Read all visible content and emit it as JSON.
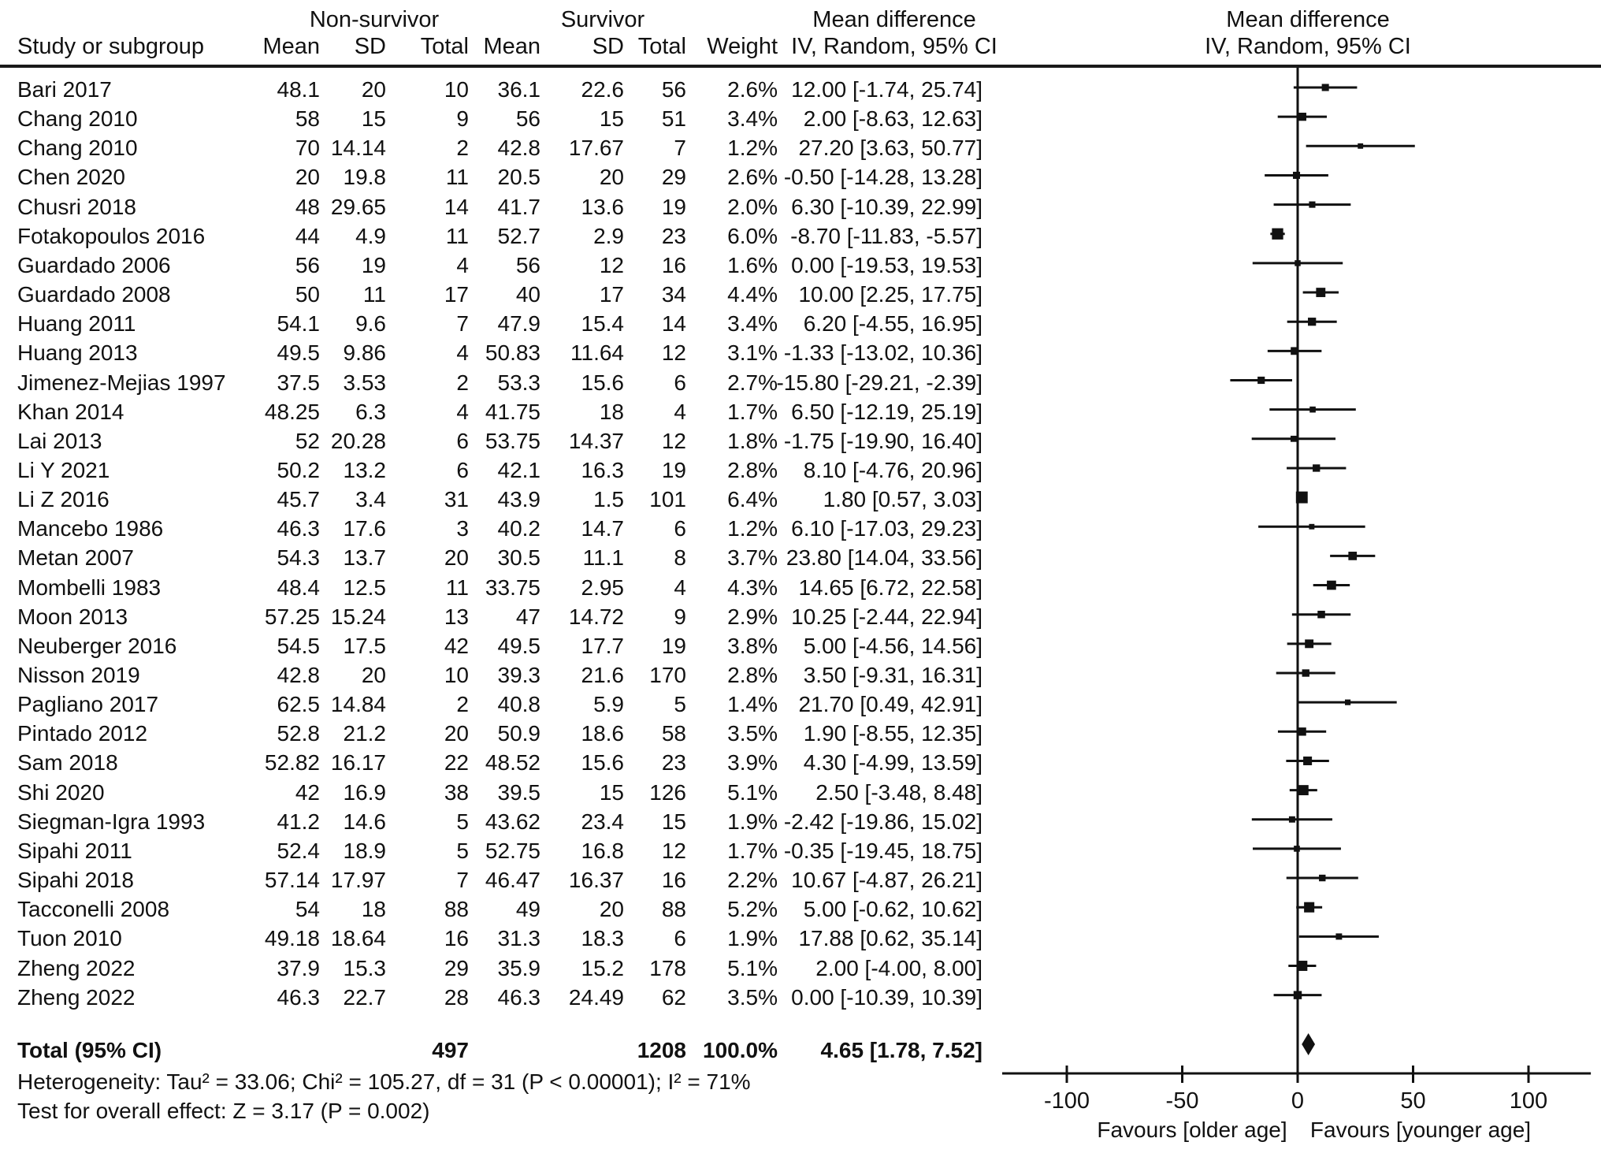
{
  "ui": {
    "columns": {
      "study": "Study or subgroup",
      "group1": "Non-survivor",
      "group2": "Survivor",
      "mean": "Mean",
      "sd": "SD",
      "total": "Total",
      "weight": "Weight",
      "md_line1": "Mean difference",
      "md_line2": "IV, Random, 95% CI",
      "plot_line1": "Mean difference",
      "plot_line2": "IV, Random, 95% CI"
    },
    "footer": {
      "total_label": "Total (95% CI)",
      "total_ns_n": "497",
      "total_s_n": "1208",
      "total_weight": "100.0%",
      "total_ci_text": "4.65 [1.78, 7.52]",
      "heterogeneity": "Heterogeneity: Tau² = 33.06; Chi² = 105.27, df = 31 (P < 0.00001); I² = 71%",
      "overall_effect": "Test for overall effect: Z = 3.17 (P = 0.002)"
    },
    "colors": {
      "ink": "#111111"
    }
  },
  "chart_data": {
    "type": "scatter",
    "subtype": "forest-plot",
    "title": "Mean difference IV, Random, 95% CI",
    "xlabel": "Mean difference",
    "xlim": [
      -128,
      127
    ],
    "xticks": [
      -100,
      -50,
      0,
      50,
      100
    ],
    "grid": false,
    "legend_position": "none",
    "favours_left": "Favours [older age]",
    "favours_right": "Favours [younger age]",
    "studies": [
      {
        "name": "Bari 2017",
        "ns": [
          "48.1",
          "20",
          "10"
        ],
        "s": [
          "36.1",
          "22.6",
          "56"
        ],
        "weight": "2.6%",
        "w": 2.6,
        "md": 12.0,
        "lo": -1.74,
        "hi": 25.74
      },
      {
        "name": "Chang 2010",
        "ns": [
          "58",
          "15",
          "9"
        ],
        "s": [
          "56",
          "15",
          "51"
        ],
        "weight": "3.4%",
        "w": 3.4,
        "md": 2.0,
        "lo": -8.63,
        "hi": 12.63
      },
      {
        "name": "Chang 2010",
        "ns": [
          "70",
          "14.14",
          "2"
        ],
        "s": [
          "42.8",
          "17.67",
          "7"
        ],
        "weight": "1.2%",
        "w": 1.2,
        "md": 27.2,
        "lo": 3.63,
        "hi": 50.77
      },
      {
        "name": "Chen 2020",
        "ns": [
          "20",
          "19.8",
          "11"
        ],
        "s": [
          "20.5",
          "20",
          "29"
        ],
        "weight": "2.6%",
        "w": 2.6,
        "md": -0.5,
        "lo": -14.28,
        "hi": 13.28
      },
      {
        "name": "Chusri 2018",
        "ns": [
          "48",
          "29.65",
          "14"
        ],
        "s": [
          "41.7",
          "13.6",
          "19"
        ],
        "weight": "2.0%",
        "w": 2.0,
        "md": 6.3,
        "lo": -10.39,
        "hi": 22.99
      },
      {
        "name": "Fotakopoulos 2016",
        "ns": [
          "44",
          "4.9",
          "11"
        ],
        "s": [
          "52.7",
          "2.9",
          "23"
        ],
        "weight": "6.0%",
        "w": 6.0,
        "md": -8.7,
        "lo": -11.83,
        "hi": -5.57
      },
      {
        "name": "Guardado 2006",
        "ns": [
          "56",
          "19",
          "4"
        ],
        "s": [
          "56",
          "12",
          "16"
        ],
        "weight": "1.6%",
        "w": 1.6,
        "md": 0.0,
        "lo": -19.53,
        "hi": 19.53
      },
      {
        "name": "Guardado 2008",
        "ns": [
          "50",
          "11",
          "17"
        ],
        "s": [
          "40",
          "17",
          "34"
        ],
        "weight": "4.4%",
        "w": 4.4,
        "md": 10.0,
        "lo": 2.25,
        "hi": 17.75
      },
      {
        "name": "Huang 2011",
        "ns": [
          "54.1",
          "9.6",
          "7"
        ],
        "s": [
          "47.9",
          "15.4",
          "14"
        ],
        "weight": "3.4%",
        "w": 3.4,
        "md": 6.2,
        "lo": -4.55,
        "hi": 16.95
      },
      {
        "name": "Huang 2013",
        "ns": [
          "49.5",
          "9.86",
          "4"
        ],
        "s": [
          "50.83",
          "11.64",
          "12"
        ],
        "weight": "3.1%",
        "w": 3.1,
        "md": -1.33,
        "lo": -13.02,
        "hi": 10.36
      },
      {
        "name": "Jimenez-Mejias 1997",
        "ns": [
          "37.5",
          "3.53",
          "2"
        ],
        "s": [
          "53.3",
          "15.6",
          "6"
        ],
        "weight": "2.7%",
        "w": 2.7,
        "md": -15.8,
        "lo": -29.21,
        "hi": -2.39
      },
      {
        "name": "Khan 2014",
        "ns": [
          "48.25",
          "6.3",
          "4"
        ],
        "s": [
          "41.75",
          "18",
          "4"
        ],
        "weight": "1.7%",
        "w": 1.7,
        "md": 6.5,
        "lo": -12.19,
        "hi": 25.19
      },
      {
        "name": "Lai 2013",
        "ns": [
          "52",
          "20.28",
          "6"
        ],
        "s": [
          "53.75",
          "14.37",
          "12"
        ],
        "weight": "1.8%",
        "w": 1.8,
        "md": -1.75,
        "lo": -19.9,
        "hi": 16.4
      },
      {
        "name": "Li Y 2021",
        "ns": [
          "50.2",
          "13.2",
          "6"
        ],
        "s": [
          "42.1",
          "16.3",
          "19"
        ],
        "weight": "2.8%",
        "w": 2.8,
        "md": 8.1,
        "lo": -4.76,
        "hi": 20.96
      },
      {
        "name": "Li Z 2016",
        "ns": [
          "45.7",
          "3.4",
          "31"
        ],
        "s": [
          "43.9",
          "1.5",
          "101"
        ],
        "weight": "6.4%",
        "w": 6.4,
        "md": 1.8,
        "lo": 0.57,
        "hi": 3.03
      },
      {
        "name": "Mancebo 1986",
        "ns": [
          "46.3",
          "17.6",
          "3"
        ],
        "s": [
          "40.2",
          "14.7",
          "6"
        ],
        "weight": "1.2%",
        "w": 1.2,
        "md": 6.1,
        "lo": -17.03,
        "hi": 29.23
      },
      {
        "name": "Metan 2007",
        "ns": [
          "54.3",
          "13.7",
          "20"
        ],
        "s": [
          "30.5",
          "11.1",
          "8"
        ],
        "weight": "3.7%",
        "w": 3.7,
        "md": 23.8,
        "lo": 14.04,
        "hi": 33.56
      },
      {
        "name": "Mombelli 1983",
        "ns": [
          "48.4",
          "12.5",
          "11"
        ],
        "s": [
          "33.75",
          "2.95",
          "4"
        ],
        "weight": "4.3%",
        "w": 4.3,
        "md": 14.65,
        "lo": 6.72,
        "hi": 22.58
      },
      {
        "name": "Moon 2013",
        "ns": [
          "57.25",
          "15.24",
          "13"
        ],
        "s": [
          "47",
          "14.72",
          "9"
        ],
        "weight": "2.9%",
        "w": 2.9,
        "md": 10.25,
        "lo": -2.44,
        "hi": 22.94
      },
      {
        "name": "Neuberger 2016",
        "ns": [
          "54.5",
          "17.5",
          "42"
        ],
        "s": [
          "49.5",
          "17.7",
          "19"
        ],
        "weight": "3.8%",
        "w": 3.8,
        "md": 5.0,
        "lo": -4.56,
        "hi": 14.56
      },
      {
        "name": "Nisson 2019",
        "ns": [
          "42.8",
          "20",
          "10"
        ],
        "s": [
          "39.3",
          "21.6",
          "170"
        ],
        "weight": "2.8%",
        "w": 2.8,
        "md": 3.5,
        "lo": -9.31,
        "hi": 16.31
      },
      {
        "name": "Pagliano 2017",
        "ns": [
          "62.5",
          "14.84",
          "2"
        ],
        "s": [
          "40.8",
          "5.9",
          "5"
        ],
        "weight": "1.4%",
        "w": 1.4,
        "md": 21.7,
        "lo": 0.49,
        "hi": 42.91
      },
      {
        "name": "Pintado 2012",
        "ns": [
          "52.8",
          "21.2",
          "20"
        ],
        "s": [
          "50.9",
          "18.6",
          "58"
        ],
        "weight": "3.5%",
        "w": 3.5,
        "md": 1.9,
        "lo": -8.55,
        "hi": 12.35
      },
      {
        "name": "Sam 2018",
        "ns": [
          "52.82",
          "16.17",
          "22"
        ],
        "s": [
          "48.52",
          "15.6",
          "23"
        ],
        "weight": "3.9%",
        "w": 3.9,
        "md": 4.3,
        "lo": -4.99,
        "hi": 13.59
      },
      {
        "name": "Shi 2020",
        "ns": [
          "42",
          "16.9",
          "38"
        ],
        "s": [
          "39.5",
          "15",
          "126"
        ],
        "weight": "5.1%",
        "w": 5.1,
        "md": 2.5,
        "lo": -3.48,
        "hi": 8.48
      },
      {
        "name": "Siegman-Igra 1993",
        "ns": [
          "41.2",
          "14.6",
          "5"
        ],
        "s": [
          "43.62",
          "23.4",
          "15"
        ],
        "weight": "1.9%",
        "w": 1.9,
        "md": -2.42,
        "lo": -19.86,
        "hi": 15.02
      },
      {
        "name": "Sipahi 2011",
        "ns": [
          "52.4",
          "18.9",
          "5"
        ],
        "s": [
          "52.75",
          "16.8",
          "12"
        ],
        "weight": "1.7%",
        "w": 1.7,
        "md": -0.35,
        "lo": -19.45,
        "hi": 18.75
      },
      {
        "name": "Sipahi 2018",
        "ns": [
          "57.14",
          "17.97",
          "7"
        ],
        "s": [
          "46.47",
          "16.37",
          "16"
        ],
        "weight": "2.2%",
        "w": 2.2,
        "md": 10.67,
        "lo": -4.87,
        "hi": 26.21
      },
      {
        "name": "Tacconelli 2008",
        "ns": [
          "54",
          "18",
          "88"
        ],
        "s": [
          "49",
          "20",
          "88"
        ],
        "weight": "5.2%",
        "w": 5.2,
        "md": 5.0,
        "lo": -0.62,
        "hi": 10.62
      },
      {
        "name": "Tuon 2010",
        "ns": [
          "49.18",
          "18.64",
          "16"
        ],
        "s": [
          "31.3",
          "18.3",
          "6"
        ],
        "weight": "1.9%",
        "w": 1.9,
        "md": 17.88,
        "lo": 0.62,
        "hi": 35.14
      },
      {
        "name": "Zheng 2022",
        "ns": [
          "37.9",
          "15.3",
          "29"
        ],
        "s": [
          "35.9",
          "15.2",
          "178"
        ],
        "weight": "5.1%",
        "w": 5.1,
        "md": 2.0,
        "lo": -4.0,
        "hi": 8.0
      },
      {
        "name": "Zheng 2022",
        "ns": [
          "46.3",
          "22.7",
          "28"
        ],
        "s": [
          "46.3",
          "24.49",
          "62"
        ],
        "weight": "3.5%",
        "w": 3.5,
        "md": 0.0,
        "lo": -10.39,
        "hi": 10.39
      }
    ],
    "total": {
      "md": 4.65,
      "lo": 1.78,
      "hi": 7.52
    }
  }
}
